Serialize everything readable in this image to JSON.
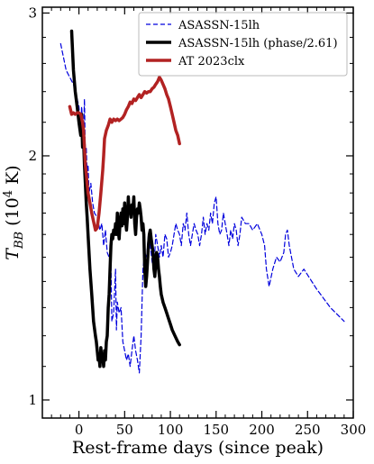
{
  "chart_data": {
    "type": "line",
    "xlabel": "Rest-frame days (since peak)",
    "ylabel": "T_BB (10^4 K)",
    "ylabel_parts": {
      "base": "T",
      "sub": "BB",
      "unit_open": " (10",
      "sup": "4",
      "unit_close": " K)"
    },
    "xlim": [
      -40,
      300
    ],
    "ylim": [
      0.95,
      3.05
    ],
    "y_scale": "log",
    "x_ticks": [
      0,
      50,
      100,
      150,
      200,
      250,
      300
    ],
    "x_tick_labels": [
      "0",
      "50",
      "100",
      "150",
      "200",
      "250",
      "300"
    ],
    "y_ticks": [
      1,
      2,
      3
    ],
    "y_tick_labels": [
      "1",
      "2",
      "3"
    ],
    "grid": false,
    "legend_position": "top-right",
    "series": [
      {
        "name": "ASASSN-15lh",
        "style": "dashed",
        "color": "#0000dd",
        "points": [
          [
            -20,
            2.75
          ],
          [
            -17,
            2.65
          ],
          [
            -14,
            2.55
          ],
          [
            -10,
            2.5
          ],
          [
            -6,
            2.45
          ],
          [
            -3,
            2.38
          ],
          [
            0,
            2.3
          ],
          [
            2,
            2.15
          ],
          [
            3,
            2.3
          ],
          [
            5,
            2.1
          ],
          [
            6,
            2.35
          ],
          [
            7,
            2.0
          ],
          [
            8,
            2.05
          ],
          [
            9,
            1.9
          ],
          [
            10,
            1.95
          ],
          [
            11,
            1.8
          ],
          [
            13,
            1.85
          ],
          [
            15,
            1.75
          ],
          [
            17,
            1.7
          ],
          [
            20,
            1.68
          ],
          [
            23,
            1.62
          ],
          [
            25,
            1.65
          ],
          [
            27,
            1.55
          ],
          [
            29,
            1.62
          ],
          [
            31,
            1.52
          ],
          [
            33,
            1.5
          ],
          [
            35,
            1.48
          ],
          [
            36,
            1.25
          ],
          [
            38,
            1.28
          ],
          [
            40,
            1.45
          ],
          [
            41,
            1.22
          ],
          [
            42,
            1.32
          ],
          [
            44,
            1.28
          ],
          [
            46,
            1.3
          ],
          [
            48,
            1.18
          ],
          [
            50,
            1.15
          ],
          [
            52,
            1.12
          ],
          [
            54,
            1.14
          ],
          [
            56,
            1.1
          ],
          [
            58,
            1.15
          ],
          [
            60,
            1.2
          ],
          [
            62,
            1.15
          ],
          [
            64,
            1.12
          ],
          [
            66,
            1.08
          ],
          [
            68,
            1.2
          ],
          [
            70,
            1.45
          ],
          [
            72,
            1.52
          ],
          [
            74,
            1.5
          ],
          [
            76,
            1.6
          ],
          [
            78,
            1.55
          ],
          [
            80,
            1.48
          ],
          [
            82,
            1.45
          ],
          [
            84,
            1.6
          ],
          [
            86,
            1.55
          ],
          [
            88,
            1.5
          ],
          [
            90,
            1.55
          ],
          [
            92,
            1.5
          ],
          [
            94,
            1.6
          ],
          [
            96,
            1.58
          ],
          [
            98,
            1.5
          ],
          [
            100,
            1.52
          ],
          [
            102,
            1.55
          ],
          [
            104,
            1.6
          ],
          [
            106,
            1.65
          ],
          [
            108,
            1.62
          ],
          [
            110,
            1.6
          ],
          [
            112,
            1.55
          ],
          [
            114,
            1.65
          ],
          [
            116,
            1.62
          ],
          [
            118,
            1.7
          ],
          [
            120,
            1.6
          ],
          [
            122,
            1.55
          ],
          [
            124,
            1.6
          ],
          [
            126,
            1.65
          ],
          [
            128,
            1.62
          ],
          [
            130,
            1.6
          ],
          [
            132,
            1.55
          ],
          [
            134,
            1.6
          ],
          [
            136,
            1.68
          ],
          [
            138,
            1.6
          ],
          [
            140,
            1.65
          ],
          [
            142,
            1.62
          ],
          [
            144,
            1.7
          ],
          [
            146,
            1.65
          ],
          [
            148,
            1.75
          ],
          [
            150,
            1.78
          ],
          [
            152,
            1.65
          ],
          [
            154,
            1.6
          ],
          [
            156,
            1.62
          ],
          [
            158,
            1.7
          ],
          [
            160,
            1.65
          ],
          [
            162,
            1.6
          ],
          [
            164,
            1.55
          ],
          [
            166,
            1.62
          ],
          [
            168,
            1.58
          ],
          [
            170,
            1.65
          ],
          [
            172,
            1.62
          ],
          [
            174,
            1.55
          ],
          [
            176,
            1.6
          ],
          [
            178,
            1.68
          ],
          [
            182,
            1.65
          ],
          [
            186,
            1.65
          ],
          [
            190,
            1.62
          ],
          [
            195,
            1.65
          ],
          [
            200,
            1.6
          ],
          [
            203,
            1.55
          ],
          [
            205,
            1.45
          ],
          [
            208,
            1.38
          ],
          [
            212,
            1.45
          ],
          [
            216,
            1.5
          ],
          [
            220,
            1.48
          ],
          [
            224,
            1.52
          ],
          [
            226,
            1.6
          ],
          [
            228,
            1.62
          ],
          [
            230,
            1.55
          ],
          [
            235,
            1.45
          ],
          [
            240,
            1.42
          ],
          [
            246,
            1.45
          ],
          [
            260,
            1.37
          ],
          [
            275,
            1.3
          ],
          [
            290,
            1.25
          ]
        ]
      },
      {
        "name": "ASASSN-15lh (phase/2.61)",
        "style": "solid",
        "color": "#000000",
        "points": [
          [
            -8,
            2.85
          ],
          [
            -6,
            2.55
          ],
          [
            -4,
            2.4
          ],
          [
            -2,
            2.3
          ],
          [
            0,
            2.2
          ],
          [
            2,
            2.12
          ],
          [
            3,
            2.25
          ],
          [
            4,
            2.05
          ],
          [
            5,
            2.1
          ],
          [
            6,
            1.95
          ],
          [
            7,
            1.85
          ],
          [
            8,
            1.75
          ],
          [
            9,
            1.68
          ],
          [
            10,
            1.6
          ],
          [
            12,
            1.45
          ],
          [
            14,
            1.35
          ],
          [
            16,
            1.25
          ],
          [
            18,
            1.2
          ],
          [
            19,
            1.18
          ],
          [
            20,
            1.15
          ],
          [
            21,
            1.12
          ],
          [
            22,
            1.13
          ],
          [
            23,
            1.1
          ],
          [
            24,
            1.16
          ],
          [
            25,
            1.12
          ],
          [
            26,
            1.13
          ],
          [
            27,
            1.1
          ],
          [
            28,
            1.15
          ],
          [
            29,
            1.12
          ],
          [
            30,
            1.18
          ],
          [
            31,
            1.2
          ],
          [
            32,
            1.3
          ],
          [
            33,
            1.35
          ],
          [
            34,
            1.45
          ],
          [
            35,
            1.55
          ],
          [
            36,
            1.6
          ],
          [
            37,
            1.58
          ],
          [
            38,
            1.62
          ],
          [
            39,
            1.6
          ],
          [
            40,
            1.65
          ],
          [
            41,
            1.6
          ],
          [
            42,
            1.7
          ],
          [
            43,
            1.62
          ],
          [
            44,
            1.58
          ],
          [
            45,
            1.66
          ],
          [
            46,
            1.7
          ],
          [
            47,
            1.64
          ],
          [
            48,
            1.72
          ],
          [
            49,
            1.65
          ],
          [
            50,
            1.75
          ],
          [
            51,
            1.66
          ],
          [
            52,
            1.62
          ],
          [
            53,
            1.68
          ],
          [
            54,
            1.78
          ],
          [
            55,
            1.7
          ],
          [
            56,
            1.72
          ],
          [
            57,
            1.68
          ],
          [
            58,
            1.74
          ],
          [
            59,
            1.72
          ],
          [
            60,
            1.78
          ],
          [
            61,
            1.65
          ],
          [
            62,
            1.6
          ],
          [
            63,
            1.68
          ],
          [
            64,
            1.72
          ],
          [
            65,
            1.7
          ],
          [
            66,
            1.75
          ],
          [
            67,
            1.72
          ],
          [
            68,
            1.68
          ],
          [
            69,
            1.62
          ],
          [
            70,
            1.65
          ],
          [
            71,
            1.6
          ],
          [
            72,
            1.45
          ],
          [
            73,
            1.38
          ],
          [
            74,
            1.42
          ],
          [
            75,
            1.48
          ],
          [
            76,
            1.55
          ],
          [
            77,
            1.6
          ],
          [
            78,
            1.62
          ],
          [
            79,
            1.58
          ],
          [
            80,
            1.55
          ],
          [
            81,
            1.52
          ],
          [
            82,
            1.45
          ],
          [
            83,
            1.42
          ],
          [
            84,
            1.48
          ],
          [
            85,
            1.52
          ],
          [
            86,
            1.5
          ],
          [
            87,
            1.45
          ],
          [
            88,
            1.42
          ],
          [
            89,
            1.38
          ],
          [
            90,
            1.35
          ],
          [
            92,
            1.32
          ],
          [
            94,
            1.3
          ],
          [
            96,
            1.28
          ],
          [
            98,
            1.26
          ],
          [
            100,
            1.24
          ],
          [
            102,
            1.22
          ],
          [
            105,
            1.2
          ],
          [
            108,
            1.18
          ],
          [
            110,
            1.17
          ]
        ]
      },
      {
        "name": "AT 2023clx",
        "style": "solid",
        "color": "#b22222",
        "points": [
          [
            -10,
            2.3
          ],
          [
            -8,
            2.25
          ],
          [
            -6,
            2.26
          ],
          [
            -4,
            2.25
          ],
          [
            -2,
            2.26
          ],
          [
            0,
            2.26
          ],
          [
            2,
            2.25
          ],
          [
            4,
            2.2
          ],
          [
            5,
            2.15
          ],
          [
            6,
            2.05
          ],
          [
            7,
            1.95
          ],
          [
            8,
            1.9
          ],
          [
            9,
            1.85
          ],
          [
            10,
            1.8
          ],
          [
            12,
            1.75
          ],
          [
            14,
            1.7
          ],
          [
            16,
            1.66
          ],
          [
            18,
            1.62
          ],
          [
            20,
            1.63
          ],
          [
            22,
            1.7
          ],
          [
            24,
            1.8
          ],
          [
            26,
            1.92
          ],
          [
            27,
            2.0
          ],
          [
            28,
            2.1
          ],
          [
            30,
            2.15
          ],
          [
            32,
            2.18
          ],
          [
            34,
            2.22
          ],
          [
            36,
            2.2
          ],
          [
            38,
            2.22
          ],
          [
            40,
            2.21
          ],
          [
            42,
            2.22
          ],
          [
            44,
            2.21
          ],
          [
            46,
            2.22
          ],
          [
            48,
            2.23
          ],
          [
            50,
            2.25
          ],
          [
            52,
            2.28
          ],
          [
            54,
            2.3
          ],
          [
            56,
            2.33
          ],
          [
            58,
            2.32
          ],
          [
            60,
            2.35
          ],
          [
            62,
            2.34
          ],
          [
            64,
            2.36
          ],
          [
            66,
            2.38
          ],
          [
            68,
            2.36
          ],
          [
            70,
            2.38
          ],
          [
            72,
            2.4
          ],
          [
            74,
            2.39
          ],
          [
            76,
            2.4
          ],
          [
            78,
            2.4
          ],
          [
            80,
            2.42
          ],
          [
            82,
            2.43
          ],
          [
            84,
            2.45
          ],
          [
            86,
            2.47
          ],
          [
            88,
            2.5
          ],
          [
            90,
            2.48
          ],
          [
            92,
            2.45
          ],
          [
            94,
            2.42
          ],
          [
            96,
            2.38
          ],
          [
            98,
            2.35
          ],
          [
            100,
            2.3
          ],
          [
            102,
            2.25
          ],
          [
            104,
            2.2
          ],
          [
            106,
            2.15
          ],
          [
            108,
            2.12
          ],
          [
            110,
            2.07
          ]
        ]
      }
    ]
  }
}
